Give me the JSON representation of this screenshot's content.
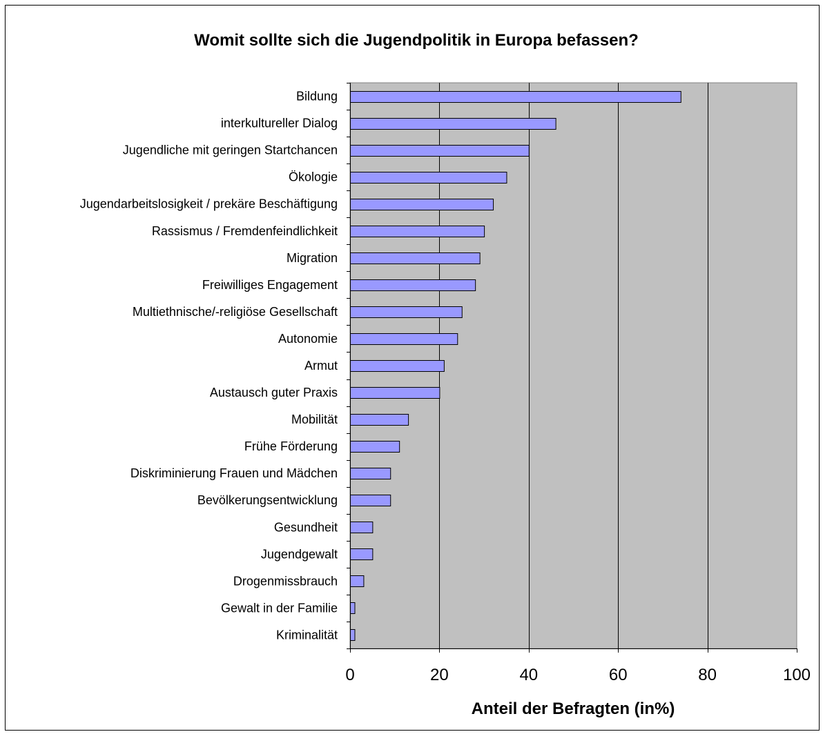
{
  "chart_data": {
    "type": "bar",
    "orientation": "horizontal",
    "title": "Womit sollte sich die Jugendpolitik in Europa befassen?",
    "xlabel": "Anteil der Befragten (in%)",
    "ylabel": "",
    "xlim": [
      0,
      100
    ],
    "xticks": [
      "0",
      "20",
      "40",
      "60",
      "80",
      "100"
    ],
    "grid": "vertical",
    "legend": "none",
    "colors": {
      "plot_background": "#c0c0c0",
      "bar_fill": "#9999ff",
      "bar_stroke": "#000000",
      "gridline": "#000000"
    },
    "categories": [
      "Bildung",
      "interkultureller Dialog",
      "Jugendliche mit geringen Startchancen",
      "Ökologie",
      "Jugendarbeitslosigkeit / prekäre Beschäftigung",
      "Rassismus / Fremdenfeindlichkeit",
      "Migration",
      "Freiwilliges Engagement",
      "Multiethnische/-religiöse Gesellschaft",
      "Autonomie",
      "Armut",
      "Austausch guter Praxis",
      "Mobilität",
      "Frühe Förderung",
      "Diskriminierung Frauen und Mädchen",
      "Bevölkerungsentwicklung",
      "Gesundheit",
      "Jugendgewalt",
      "Drogenmissbrauch",
      "Gewalt in der Familie",
      "Kriminalität"
    ],
    "values": [
      74,
      46,
      40,
      35,
      32,
      30,
      29,
      28,
      25,
      24,
      21,
      20,
      13,
      11,
      9,
      9,
      5,
      5,
      3,
      1,
      1
    ]
  }
}
